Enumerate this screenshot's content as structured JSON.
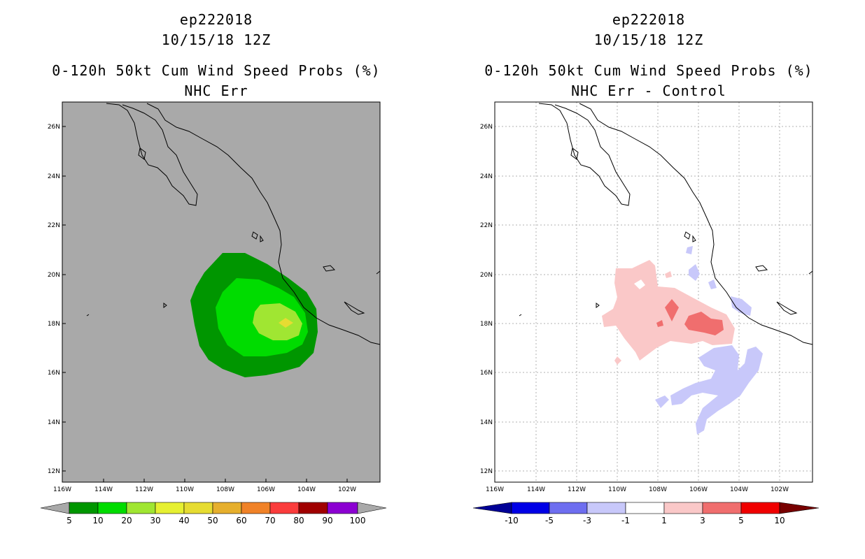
{
  "left_panel": {
    "storm_id": "ep222018",
    "datetime": "10/15/18 12Z",
    "product": "0-120h 50kt Cum Wind Speed Probs (%)",
    "subtitle": "NHC Err",
    "lat_labels": [
      "26N",
      "24N",
      "22N",
      "20N",
      "18N",
      "16N",
      "14N",
      "12N"
    ],
    "lon_labels": [
      "116W",
      "114W",
      "112W",
      "110W",
      "108W",
      "106W",
      "104W",
      "102W"
    ],
    "colorbar": {
      "labels": [
        "5",
        "10",
        "20",
        "30",
        "40",
        "50",
        "60",
        "70",
        "80",
        "90",
        "100"
      ],
      "colors": [
        "#009600",
        "#00dc00",
        "#a0e632",
        "#e6dc32",
        "#e6dc32",
        "#e6af2d",
        "#f08228",
        "#fa3c3c",
        "#a00000",
        "#8c00d2",
        "#a0a0a0"
      ],
      "below_color": "#a9a9a9",
      "above_color": "#a9a9a9"
    },
    "background_color": "#a9a9a9"
  },
  "right_panel": {
    "storm_id": "ep222018",
    "datetime": "10/15/18 12Z",
    "product": "0-120h 50kt Cum Wind Speed Probs (%)",
    "subtitle": "NHC Err - Control",
    "lat_labels": [
      "26N",
      "24N",
      "22N",
      "20N",
      "18N",
      "16N",
      "14N",
      "12N"
    ],
    "lon_labels": [
      "116W",
      "114W",
      "112W",
      "110W",
      "108W",
      "106W",
      "104W",
      "102W"
    ],
    "colorbar": {
      "labels": [
        "-10",
        "-5",
        "-3",
        "-1",
        "1",
        "3",
        "5",
        "10"
      ],
      "colors": [
        "#0000e6",
        "#6e6ef0",
        "#c8c8fa",
        "#ffffff",
        "#fac8c8",
        "#f06e6e",
        "#f00000"
      ],
      "below_color": "#000096",
      "above_color": "#780000"
    },
    "background_color": "#ffffff"
  }
}
